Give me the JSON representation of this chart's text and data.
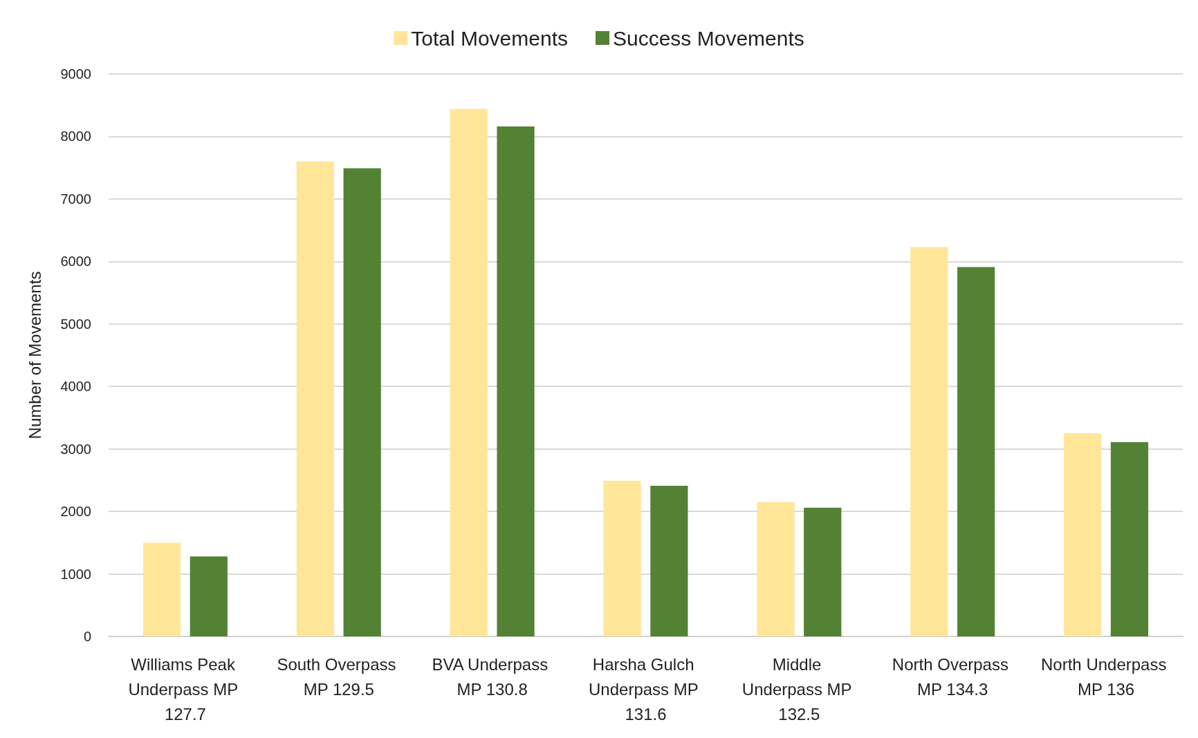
{
  "chart_data": {
    "type": "bar",
    "ylabel": "Number of Movements",
    "categories": [
      "Williams Peak Underpass MP 127.7",
      "South Overpass MP 129.5",
      "BVA Underpass MP 130.8",
      "Harsha Gulch Underpass MP 131.6",
      "Middle Underpass MP 132.5",
      "North Overpass MP 134.3",
      "North Underpass MP 136"
    ],
    "series": [
      {
        "name": "Total Movements",
        "color": "#ffe699",
        "values": [
          1500,
          7600,
          8440,
          2490,
          2150,
          6230,
          3250
        ]
      },
      {
        "name": "Success Movements",
        "color": "#548235",
        "values": [
          1280,
          7490,
          8160,
          2410,
          2060,
          5910,
          3110
        ]
      }
    ],
    "ylim": [
      0,
      9000
    ],
    "yticks": [
      0,
      1000,
      2000,
      3000,
      4000,
      5000,
      6000,
      7000,
      8000,
      9000
    ],
    "grid": "y",
    "legend": "top"
  }
}
